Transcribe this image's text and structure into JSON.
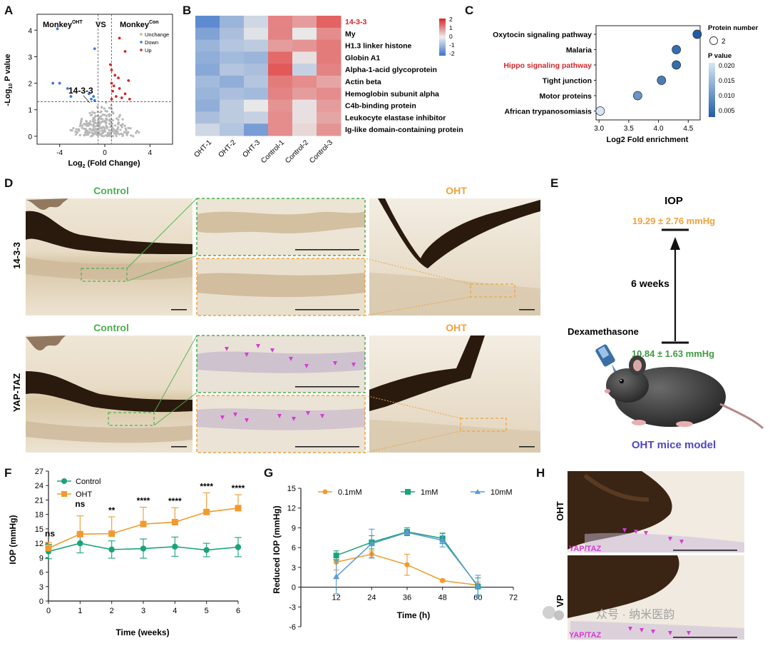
{
  "colors": {
    "down": "#3a7bd5",
    "up": "#d62728",
    "nochange": "#b8b8b8",
    "heat_high": "#e34a4a",
    "heat_mid": "#e8e8e8",
    "heat_low": "#3a74c9",
    "control_green": "#4cb050",
    "oht_orange": "#f0a23c",
    "teal": "#1aa37a",
    "orange_series": "#f29a2e",
    "blue_series": "#5b9bd5",
    "magenta": "#d63ad6",
    "pathway_red": "#d62728",
    "mouse_label": "#5046c8",
    "dex_green": "#3f9b3f"
  },
  "panel_labels": [
    "A",
    "B",
    "C",
    "D",
    "E",
    "F",
    "G",
    "H"
  ],
  "panelA": {
    "title_left": "Monkey",
    "title_left_sup": "OHT",
    "vs": "VS",
    "title_right": "Monkey",
    "title_right_sup": "Con",
    "legend": [
      "Unchange",
      "Down",
      "Up"
    ],
    "annotation": "14-3-3",
    "x_ticks": [
      "-4",
      "0",
      "4"
    ],
    "y_ticks": [
      "0",
      "1",
      "2",
      "3",
      "4"
    ],
    "y_label_main": "-Log",
    "y_label_sub": "10",
    "y_label_tail": " P value",
    "x_label_main": "Log",
    "x_label_sub": "2",
    "x_label_tail": " (Fold Change)"
  },
  "panelB": {
    "rows": [
      "14-3-3",
      "My",
      "H1.3 linker histone",
      "Globin A1",
      "Alpha-1-acid glycoprotein",
      "Actin beta",
      "Hemoglobin subunit alpha",
      "C4b-binding protein",
      "Leukocyte elastase inhibitor",
      "Ig-like domain-containing protein"
    ],
    "columns": [
      "OHT-1",
      "OHT-2",
      "OHT-3",
      "Control-1",
      "Control-2",
      "Control-3"
    ],
    "matrix": [
      [
        -1.6,
        -0.9,
        -0.3,
        1.2,
        0.9,
        1.6
      ],
      [
        -1.2,
        -0.7,
        -0.1,
        1.2,
        0.0,
        1.1
      ],
      [
        -0.9,
        -0.6,
        -0.5,
        0.9,
        1.0,
        1.3
      ],
      [
        -1.0,
        -0.8,
        -0.9,
        1.5,
        0.1,
        1.3
      ],
      [
        -1.1,
        -0.6,
        -0.7,
        1.7,
        -0.4,
        1.2
      ],
      [
        -0.8,
        -1.0,
        -0.6,
        1.3,
        1.1,
        0.8
      ],
      [
        -0.9,
        -0.7,
        -0.8,
        1.2,
        0.9,
        1.1
      ],
      [
        -1.0,
        -0.5,
        0.0,
        1.0,
        0.1,
        0.9
      ],
      [
        -0.7,
        -0.5,
        -0.4,
        1.1,
        0.1,
        0.8
      ],
      [
        -0.3,
        -0.6,
        -1.3,
        1.1,
        0.2,
        1.0
      ]
    ],
    "scale_ticks": [
      "2",
      "1",
      "0",
      "-1",
      "-2"
    ]
  },
  "panelC": {
    "pathways": [
      "Oxytocin signaling pathway",
      "Malaria",
      "Hippo signaling pathway",
      "Tight junction",
      "Motor proteins",
      "African trypanosomiasis"
    ],
    "highlight": "Hippo signaling pathway",
    "x_ticks": [
      "3.0",
      "3.5",
      "4.0",
      "4.5"
    ],
    "x_label": "Log2 Fold enrichment",
    "size_legend_title": "Protein number",
    "size_legend_value": "2",
    "color_legend_title": "P value",
    "color_ticks": [
      "0.020",
      "0.015",
      "0.010",
      "0.005"
    ]
  },
  "panelD": {
    "control_label": "Control",
    "oht_label": "OHT",
    "row1_label": "14-3-3",
    "row2_label": "YAP-TAZ"
  },
  "panelE": {
    "iop_title": "IOP",
    "iop_after": "19.29 ± 2.76 mmHg",
    "duration": "6 weeks",
    "drug": "Dexamethasone",
    "iop_before": "10.84 ± 1.63 mmHg",
    "model_label": "OHT mice model"
  },
  "panelF": {
    "legend": [
      "Control",
      "OHT"
    ],
    "y_label": "IOP (mmHg)",
    "x_label": "Time (weeks)",
    "y_ticks": [
      "0",
      "3",
      "6",
      "9",
      "12",
      "15",
      "18",
      "21",
      "24",
      "27"
    ],
    "x_ticks": [
      "0",
      "1",
      "2",
      "3",
      "4",
      "5",
      "6"
    ],
    "significance": [
      "ns",
      "ns",
      "**",
      "****",
      "****",
      "****",
      "****"
    ]
  },
  "panelG": {
    "legend": [
      "0.1mM",
      "1mM",
      "10mM"
    ],
    "y_label": "Reduced IOP (mmHg)",
    "x_label": "Time (h)",
    "y_ticks": [
      "-6",
      "-3",
      "0",
      "3",
      "6",
      "9",
      "12",
      "15"
    ],
    "x_ticks": [
      "12",
      "24",
      "36",
      "48",
      "60",
      "72"
    ]
  },
  "panelH": {
    "row1_label": "OHT",
    "row2_label": "VP",
    "stain_label": "YAP/TAZ",
    "watermark": "众号 · 纳米医韵"
  },
  "chart_data": [
    {
      "type": "scatter",
      "panel": "A",
      "title": "Monkey OHT VS Monkey Con",
      "xlabel": "Log2 (Fold Change)",
      "ylabel": "-Log10 P value",
      "xlim": [
        -6,
        6
      ],
      "ylim": [
        -0.3,
        4.6
      ],
      "threshold_y": 1.3,
      "threshold_x": [
        -0.6,
        0.6
      ],
      "series": [
        {
          "name": "Down",
          "points": [
            [
              -4.2,
              4.05
            ],
            [
              -0.9,
              3.3
            ],
            [
              -4.0,
              2.0
            ],
            [
              -4.6,
              2.0
            ],
            [
              -3.3,
              1.8
            ],
            [
              -3.0,
              1.5
            ],
            [
              -1.4,
              1.6
            ],
            [
              -1.2,
              1.4
            ],
            [
              -1.0,
              1.5
            ],
            [
              -0.9,
              1.35
            ]
          ]
        },
        {
          "name": "Up",
          "points": [
            [
              1.3,
              3.7
            ],
            [
              1.8,
              3.2
            ],
            [
              0.5,
              2.7
            ],
            [
              0.6,
              2.5
            ],
            [
              0.9,
              2.3
            ],
            [
              1.2,
              2.2
            ],
            [
              2.1,
              2.1
            ],
            [
              0.6,
              2.0
            ],
            [
              0.8,
              1.9
            ],
            [
              1.3,
              1.8
            ],
            [
              1.8,
              1.6
            ],
            [
              0.7,
              1.7
            ],
            [
              1.0,
              1.5
            ],
            [
              1.5,
              1.45
            ],
            [
              2.2,
              1.4
            ],
            [
              0.6,
              1.4
            ]
          ]
        }
      ]
    },
    {
      "type": "heatmap",
      "panel": "B",
      "rows": [
        "14-3-3",
        "My",
        "H1.3 linker histone",
        "Globin A1",
        "Alpha-1-acid glycoprotein",
        "Actin beta",
        "Hemoglobin subunit alpha",
        "C4b-binding protein",
        "Leukocyte elastase inhibitor",
        "Ig-like domain-containing protein"
      ],
      "columns": [
        "OHT-1",
        "OHT-2",
        "OHT-3",
        "Control-1",
        "Control-2",
        "Control-3"
      ],
      "color_range": [
        -2,
        2
      ]
    },
    {
      "type": "scatter",
      "panel": "C",
      "xlabel": "Log2 Fold enrichment",
      "xlim": [
        2.95,
        4.7
      ],
      "categories": [
        "Oxytocin signaling pathway",
        "Malaria",
        "Hippo signaling pathway",
        "Tight junction",
        "Motor proteins",
        "African trypanosomiasis"
      ],
      "x": [
        4.65,
        4.3,
        4.3,
        4.05,
        3.65,
        3.02
      ],
      "p_value": [
        0.004,
        0.006,
        0.006,
        0.008,
        0.011,
        0.021
      ],
      "protein_number": [
        2,
        2,
        2,
        2,
        2,
        2
      ]
    },
    {
      "type": "line",
      "panel": "F",
      "xlabel": "Time (weeks)",
      "ylabel": "IOP (mmHg)",
      "ylim": [
        0,
        27
      ],
      "x": [
        0,
        1,
        2,
        3,
        4,
        5,
        6
      ],
      "series": [
        {
          "name": "Control",
          "values": [
            10.3,
            12.0,
            10.7,
            10.9,
            11.3,
            10.6,
            11.2
          ],
          "err": [
            1.5,
            2.0,
            1.8,
            2.0,
            2.0,
            1.4,
            2.0
          ]
        },
        {
          "name": "OHT",
          "values": [
            11.0,
            13.9,
            14.0,
            16.0,
            16.4,
            18.5,
            19.3
          ],
          "err": [
            1.2,
            3.8,
            3.5,
            3.5,
            3.0,
            4.0,
            2.8
          ]
        }
      ]
    },
    {
      "type": "line",
      "panel": "G",
      "xlabel": "Time (h)",
      "ylabel": "Reduced IOP (mmHg)",
      "ylim": [
        -6,
        15
      ],
      "xlim": [
        0,
        72
      ],
      "x": [
        12,
        24,
        36,
        48,
        60
      ],
      "series": [
        {
          "name": "0.1mM",
          "values": [
            3.8,
            5.0,
            3.4,
            1.0,
            0.3
          ],
          "err": [
            1.2,
            0.5,
            1.6,
            0.2,
            0.5
          ]
        },
        {
          "name": "1mM",
          "values": [
            4.8,
            6.8,
            8.4,
            7.4,
            0.1
          ],
          "err": [
            0.7,
            1.0,
            0.6,
            0.8,
            1.3
          ]
        },
        {
          "name": "10mM",
          "values": [
            1.6,
            6.6,
            8.3,
            7.1,
            0.2
          ],
          "err": [
            2.6,
            2.2,
            0.4,
            1.0,
            1.6
          ]
        }
      ]
    }
  ]
}
